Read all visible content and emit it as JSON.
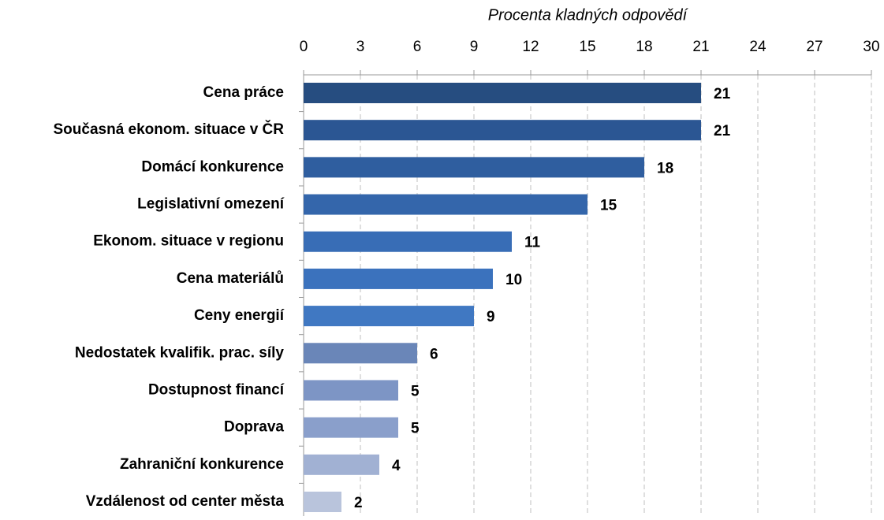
{
  "chart_data": {
    "type": "bar",
    "orientation": "horizontal",
    "x_axis_position": "top",
    "title": "Procenta kladných odpovědí",
    "categories": [
      "Cena práce",
      "Současná ekonom. situace v ČR",
      "Domácí konkurence",
      "Legislativní omezení",
      "Ekonom. situace v regionu",
      "Cena materiálů",
      "Ceny energií",
      "Nedostatek kvalifik. prac. síly",
      "Dostupnost financí",
      "Doprava",
      "Zahraniční konkurence",
      "Vzdálenost od center města"
    ],
    "values": [
      21,
      21,
      18,
      15,
      11,
      10,
      9,
      6,
      5,
      5,
      4,
      2
    ],
    "colors": [
      "#264d80",
      "#2b5693",
      "#2f5e9f",
      "#3466ab",
      "#386db6",
      "#3b72bd",
      "#4078c2",
      "#6a86b8",
      "#7d95c5",
      "#8a9fcb",
      "#a1b1d3",
      "#b9c4dc"
    ],
    "xlim": [
      0,
      30
    ],
    "xticks": [
      0,
      3,
      6,
      9,
      12,
      15,
      18,
      21,
      24,
      27,
      30
    ],
    "grid": true
  }
}
